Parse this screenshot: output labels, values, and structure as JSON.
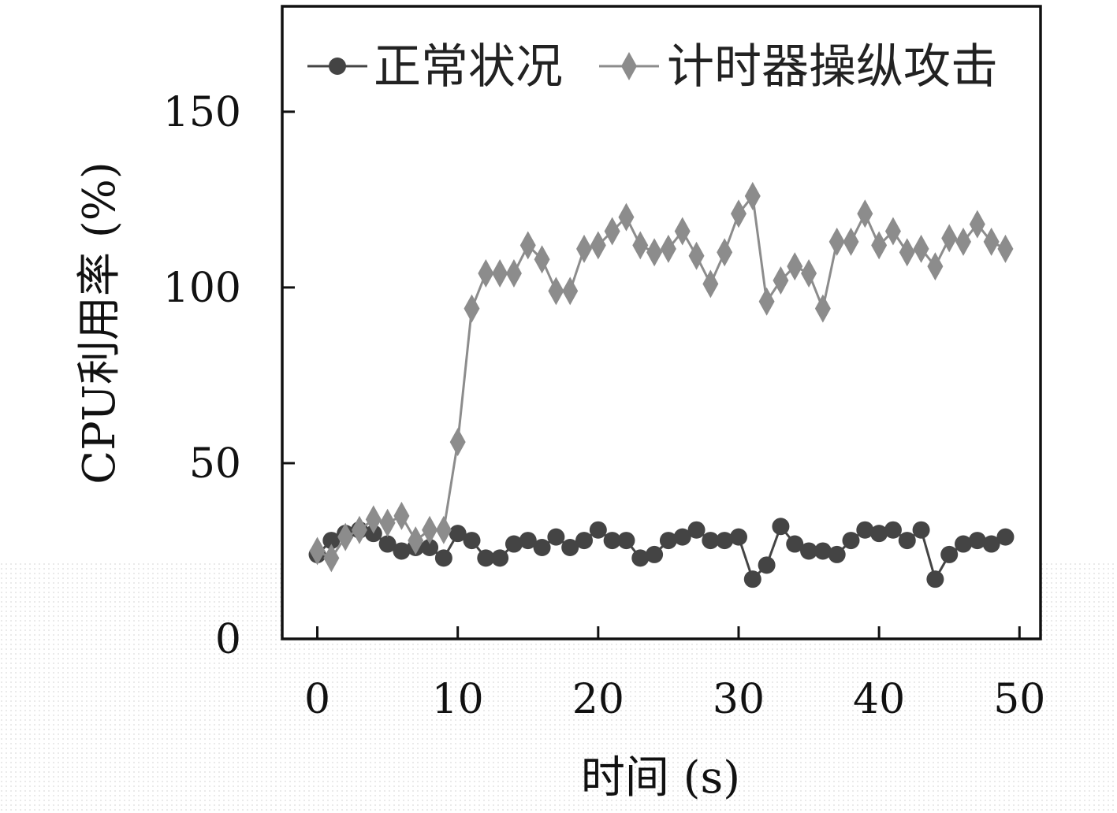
{
  "chart_data": {
    "type": "line",
    "title": "",
    "xlabel": "时间 (s)",
    "ylabel": "CPU利用率 (%)",
    "xlim": [
      -2.5,
      51.5
    ],
    "ylim": [
      0,
      180
    ],
    "xticks": [
      0,
      10,
      20,
      30,
      40,
      50
    ],
    "yticks": [
      0,
      50,
      100,
      150
    ],
    "grid": false,
    "legend_position": "top",
    "series": [
      {
        "name": "正常状况",
        "marker": "circle",
        "color": "#444444",
        "x": [
          0,
          1,
          2,
          3,
          4,
          5,
          6,
          7,
          8,
          9,
          10,
          11,
          12,
          13,
          14,
          15,
          16,
          17,
          18,
          19,
          20,
          21,
          22,
          23,
          24,
          25,
          26,
          27,
          28,
          29,
          30,
          31,
          32,
          33,
          34,
          35,
          36,
          37,
          38,
          39,
          40,
          41,
          42,
          43,
          44,
          45,
          46,
          47,
          48,
          49
        ],
        "values": [
          24,
          28,
          30,
          31,
          30,
          27,
          25,
          26,
          26,
          23,
          30,
          28,
          23,
          23,
          27,
          28,
          26,
          29,
          26,
          28,
          31,
          28,
          28,
          23,
          24,
          28,
          29,
          31,
          28,
          28,
          29,
          17,
          21,
          32,
          27,
          25,
          25,
          24,
          28,
          31,
          30,
          31,
          28,
          31,
          17,
          24,
          27,
          28,
          27,
          29
        ]
      },
      {
        "name": "计时器操纵攻击",
        "marker": "diamond",
        "color": "#8c8c8c",
        "x": [
          0,
          1,
          2,
          3,
          4,
          5,
          6,
          7,
          8,
          9,
          10,
          11,
          12,
          13,
          14,
          15,
          16,
          17,
          18,
          19,
          20,
          21,
          22,
          23,
          24,
          25,
          26,
          27,
          28,
          29,
          30,
          31,
          32,
          33,
          34,
          35,
          36,
          37,
          38,
          39,
          40,
          41,
          42,
          43,
          44,
          45,
          46,
          47,
          48,
          49
        ],
        "values": [
          25,
          23,
          29,
          31,
          34,
          33,
          35,
          28,
          31,
          31,
          56,
          94,
          104,
          104,
          104,
          112,
          108,
          99,
          99,
          111,
          112,
          116,
          120,
          112,
          110,
          111,
          116,
          109,
          101,
          110,
          121,
          126,
          96,
          102,
          106,
          104,
          94,
          113,
          113,
          121,
          112,
          116,
          110,
          111,
          106,
          114,
          113,
          118,
          113,
          111
        ]
      }
    ]
  }
}
